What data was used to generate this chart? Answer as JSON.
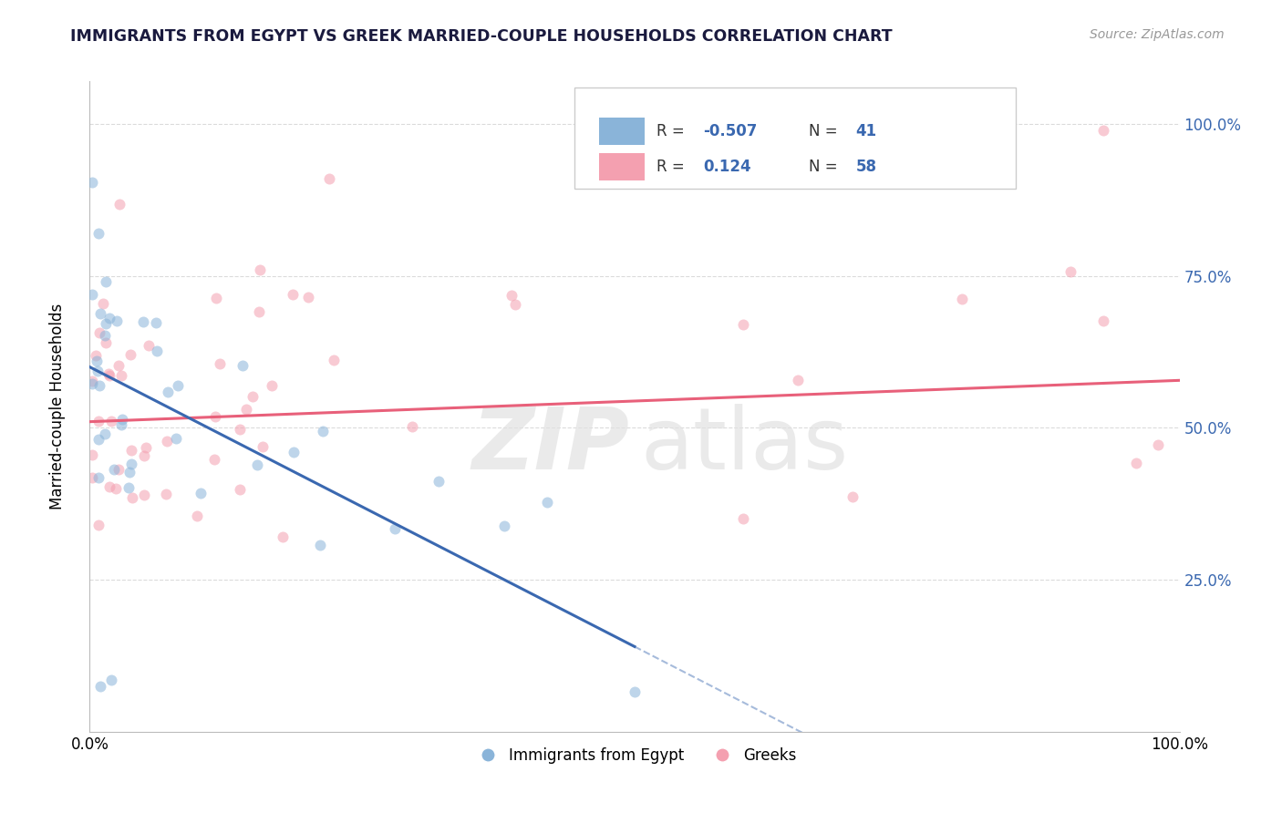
{
  "title": "IMMIGRANTS FROM EGYPT VS GREEK MARRIED-COUPLE HOUSEHOLDS CORRELATION CHART",
  "source": "Source: ZipAtlas.com",
  "ylabel": "Married-couple Households",
  "legend_label1": "Immigrants from Egypt",
  "legend_label2": "Greeks",
  "R1": "-0.507",
  "N1": "41",
  "R2": "0.124",
  "N2": "58",
  "blue_color": "#8ab4d9",
  "pink_color": "#f4a0b0",
  "blue_line_color": "#3a68b0",
  "pink_line_color": "#e8607a",
  "watermark_zip": "ZIP",
  "watermark_atlas": "atlas",
  "xmin": 0.0,
  "xmax": 100.0,
  "ymin": 0.0,
  "ymax": 107.0,
  "marker_size": 75,
  "marker_alpha": 0.55,
  "blue_slope": -0.92,
  "blue_intercept": 60.0,
  "pink_slope": 0.068,
  "pink_intercept": 51.0
}
